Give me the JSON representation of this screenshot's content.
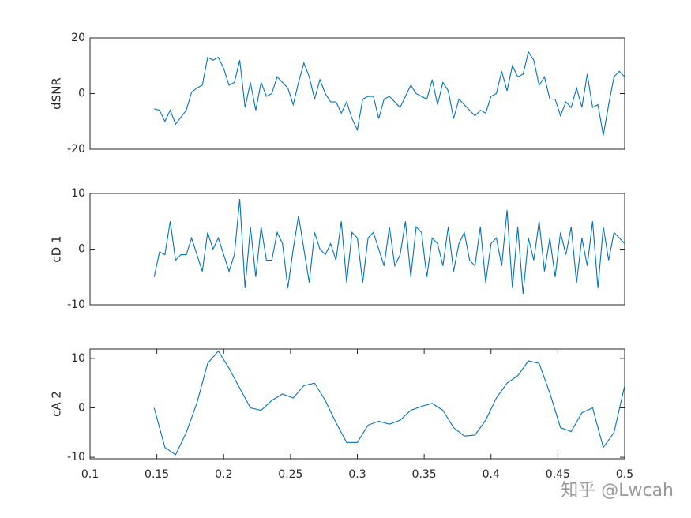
{
  "chart_data": [
    {
      "type": "line",
      "ylabel": "dSNR",
      "color": "#0072bd",
      "xlim": [
        0.1,
        0.5
      ],
      "ylim": [
        -20,
        20
      ],
      "yticks": [
        -20,
        0,
        20
      ],
      "x": [
        0.148,
        0.152,
        0.156,
        0.16,
        0.164,
        0.168,
        0.172,
        0.176,
        0.18,
        0.184,
        0.188,
        0.192,
        0.196,
        0.2,
        0.204,
        0.208,
        0.212,
        0.216,
        0.22,
        0.224,
        0.228,
        0.232,
        0.236,
        0.24,
        0.244,
        0.248,
        0.252,
        0.256,
        0.26,
        0.264,
        0.268,
        0.272,
        0.276,
        0.28,
        0.284,
        0.288,
        0.292,
        0.296,
        0.3,
        0.304,
        0.308,
        0.312,
        0.316,
        0.32,
        0.324,
        0.328,
        0.332,
        0.336,
        0.34,
        0.344,
        0.348,
        0.352,
        0.356,
        0.36,
        0.364,
        0.368,
        0.372,
        0.376,
        0.38,
        0.384,
        0.388,
        0.392,
        0.396,
        0.4,
        0.404,
        0.408,
        0.412,
        0.416,
        0.42,
        0.424,
        0.428,
        0.432,
        0.436,
        0.44,
        0.444,
        0.448,
        0.452,
        0.456,
        0.46,
        0.464,
        0.468,
        0.472,
        0.476,
        0.48,
        0.484,
        0.488,
        0.492,
        0.496,
        0.5
      ],
      "values": [
        -5.5,
        -6,
        -10,
        -6,
        -11,
        -8.5,
        -6,
        0.5,
        2,
        3,
        13,
        12,
        13,
        9,
        3,
        4,
        12,
        -5,
        4,
        -6,
        4,
        -1,
        0,
        6,
        4,
        2,
        -4,
        4,
        11,
        6,
        -2,
        5,
        0,
        -3,
        -3,
        -7,
        -3,
        -9,
        -13,
        -2,
        -1,
        -1,
        -9,
        -2,
        -1,
        -3,
        -5,
        -1,
        3,
        0,
        -1,
        -2,
        5,
        -4,
        4,
        1,
        -9,
        -2,
        -4,
        -6,
        -8,
        -6,
        -7,
        -1,
        0,
        8,
        1,
        10,
        6,
        7,
        15,
        12,
        3,
        6,
        -2,
        -2,
        -8,
        -3,
        -5,
        2,
        -5,
        7,
        -5,
        -4,
        -15,
        -4,
        6,
        8,
        6
      ]
    },
    {
      "type": "line",
      "ylabel": "cD 1",
      "color": "#0072bd",
      "xlim": [
        0.1,
        0.5
      ],
      "ylim": [
        -10,
        10
      ],
      "yticks": [
        -10,
        0,
        10
      ],
      "x": [
        0.148,
        0.152,
        0.156,
        0.16,
        0.164,
        0.168,
        0.172,
        0.176,
        0.18,
        0.184,
        0.188,
        0.192,
        0.196,
        0.2,
        0.204,
        0.208,
        0.212,
        0.216,
        0.22,
        0.224,
        0.228,
        0.232,
        0.236,
        0.24,
        0.244,
        0.248,
        0.252,
        0.256,
        0.26,
        0.264,
        0.268,
        0.272,
        0.276,
        0.28,
        0.284,
        0.288,
        0.292,
        0.296,
        0.3,
        0.304,
        0.308,
        0.312,
        0.316,
        0.32,
        0.324,
        0.328,
        0.332,
        0.336,
        0.34,
        0.344,
        0.348,
        0.352,
        0.356,
        0.36,
        0.364,
        0.368,
        0.372,
        0.376,
        0.38,
        0.384,
        0.388,
        0.392,
        0.396,
        0.4,
        0.404,
        0.408,
        0.412,
        0.416,
        0.42,
        0.424,
        0.428,
        0.432,
        0.436,
        0.44,
        0.444,
        0.448,
        0.452,
        0.456,
        0.46,
        0.464,
        0.468,
        0.472,
        0.476,
        0.48,
        0.484,
        0.488,
        0.492,
        0.496,
        0.5
      ],
      "values": [
        -5,
        -0.5,
        -1,
        5,
        -2,
        -1,
        -1,
        2,
        -1,
        -4,
        3,
        0,
        2,
        -1,
        -4,
        -1,
        9,
        -7,
        4,
        -5,
        4,
        -2,
        -2,
        3,
        1,
        -7,
        0,
        6,
        0,
        -6,
        3,
        0,
        -1,
        1,
        -2,
        5,
        -6,
        3,
        2,
        -6,
        2,
        3,
        0,
        -3,
        4,
        -3,
        -1,
        5,
        -5,
        4,
        3,
        -5,
        2,
        1,
        -3,
        4,
        -4,
        1,
        3,
        -2,
        -3,
        4,
        -6,
        1,
        2,
        -3,
        7,
        -7,
        4,
        -8,
        2,
        -2,
        5,
        -4,
        2,
        -5,
        3,
        -1,
        4,
        -6,
        2,
        -3,
        5,
        -7,
        4,
        -2,
        3,
        2,
        1
      ]
    },
    {
      "type": "line",
      "ylabel": "cA 2",
      "color": "#0072bd",
      "xlim": [
        0.1,
        0.5
      ],
      "ylim": [
        -10.3,
        11.9
      ],
      "yticks": [
        -10,
        0,
        10
      ],
      "xticks": [
        0.1,
        0.15,
        0.2,
        0.25,
        0.3,
        0.35,
        0.4,
        0.45,
        0.5
      ],
      "x": [
        0.148,
        0.156,
        0.164,
        0.172,
        0.18,
        0.188,
        0.196,
        0.204,
        0.212,
        0.22,
        0.228,
        0.236,
        0.244,
        0.252,
        0.26,
        0.268,
        0.276,
        0.284,
        0.292,
        0.3,
        0.308,
        0.316,
        0.324,
        0.332,
        0.34,
        0.348,
        0.356,
        0.364,
        0.372,
        0.38,
        0.388,
        0.396,
        0.404,
        0.412,
        0.42,
        0.428,
        0.436,
        0.444,
        0.452,
        0.46,
        0.468,
        0.476,
        0.484,
        0.492,
        0.5
      ],
      "values": [
        0,
        -8,
        -9.5,
        -5,
        1,
        9,
        11.5,
        8,
        4,
        0,
        -0.5,
        1.5,
        2.8,
        2,
        4.5,
        5,
        1.5,
        -3,
        -7,
        -7,
        -3.5,
        -2.7,
        -3.3,
        -2.5,
        -0.5,
        0.3,
        0.9,
        -0.5,
        -4,
        -5.7,
        -5.5,
        -2.5,
        2,
        5,
        6.5,
        9.5,
        9,
        3,
        -4,
        -4.8,
        -1,
        0,
        -8,
        -5,
        4.5
      ]
    }
  ],
  "watermark": "知乎 @Lwcah"
}
